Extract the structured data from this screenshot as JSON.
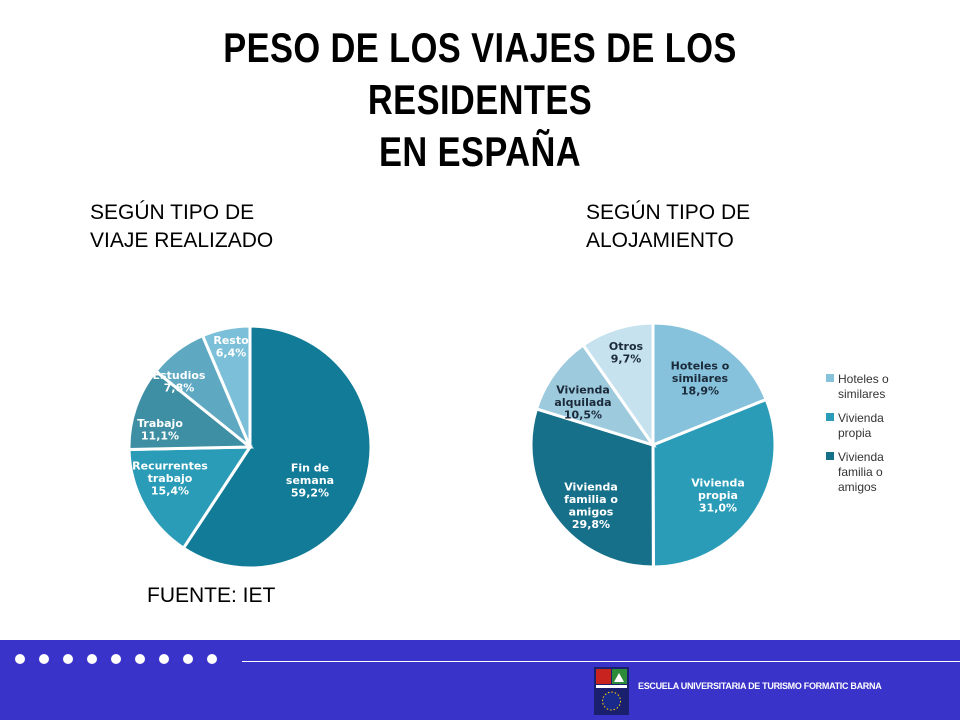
{
  "title_line1": "PESO DE LOS VIAJES DE LOS RESIDENTES",
  "title_line2": "EN ESPAÑA",
  "subtitle_left_line1": "SEGÚN TIPO DE",
  "subtitle_left_line2": "VIAJE REALIZADO",
  "subtitle_right_line1": "SEGÚN TIPO DE",
  "subtitle_right_line2": "ALOJAMIENTO",
  "source": "FUENTE: IET",
  "footer": {
    "school": "ESCUELA UNIVERSITARIA DE TURISMO FORMATIC BARNA"
  },
  "chart_data": [
    {
      "type": "pie",
      "title": "SEGÚN TIPO DE VIAJE REALIZADO",
      "slices": [
        {
          "label_lines": [
            "Fin de",
            "semana"
          ],
          "value": 59.2,
          "value_label": "59,2%",
          "color": "#127b97"
        },
        {
          "label_lines": [
            "Recurrentes",
            "trabajo"
          ],
          "value": 15.4,
          "value_label": "15,4%",
          "color": "#2a9cb8"
        },
        {
          "label_lines": [
            "Trabajo"
          ],
          "value": 11.1,
          "value_label": "11,1%",
          "color": "#3e8fa4"
        },
        {
          "label_lines": [
            "Estudios"
          ],
          "value": 7.8,
          "value_label": "7,8%",
          "color": "#5ea8c2"
        },
        {
          "label_lines": [
            "Resto"
          ],
          "value": 6.4,
          "value_label": "6,4%",
          "color": "#7cbfd8"
        }
      ]
    },
    {
      "type": "pie",
      "title": "SEGÚN TIPO DE ALOJAMIENTO",
      "slices": [
        {
          "label_lines": [
            "Hoteles o",
            "similares"
          ],
          "value": 18.9,
          "value_label": "18,9%",
          "color": "#86c2db"
        },
        {
          "label_lines": [
            "Vivienda",
            "propia"
          ],
          "value": 31.0,
          "value_label": "31,0%",
          "color": "#2a9cb8"
        },
        {
          "label_lines": [
            "Vivienda",
            "familia o",
            "amigos"
          ],
          "value": 29.8,
          "value_label": "29,8%",
          "color": "#17708a"
        },
        {
          "label_lines": [
            "Vivienda",
            "alquilada"
          ],
          "value": 10.5,
          "value_label": "10,5%",
          "color": "#9dcbdd"
        },
        {
          "label_lines": [
            "Otros"
          ],
          "value": 9.7,
          "value_label": "9,7%",
          "color": "#c6e2ee"
        }
      ],
      "legend": {
        "placement": "right",
        "entries": [
          {
            "label_lines": [
              "Hoteles o",
              "similares"
            ],
            "color": "#86c2db"
          },
          {
            "label_lines": [
              "Vivienda",
              "propia"
            ],
            "color": "#2a9cb8"
          },
          {
            "label_lines": [
              "Vivienda",
              "familia o",
              "amigos"
            ],
            "color": "#17708a"
          }
        ]
      }
    }
  ]
}
